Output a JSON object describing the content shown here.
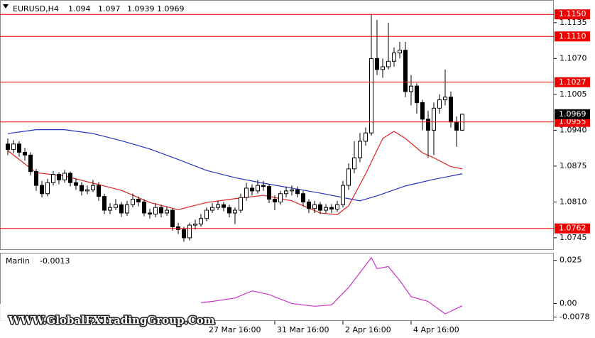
{
  "chart_data": [
    {
      "type": "candlestick",
      "title": "EURUSD,H4",
      "categories": [
        null,
        null,
        null,
        null,
        null,
        null,
        null,
        null,
        null,
        null,
        null,
        null,
        null,
        null,
        null,
        null,
        null,
        null,
        null,
        null,
        null,
        null,
        null,
        null,
        null,
        null,
        null,
        null,
        null,
        null,
        null,
        null,
        null,
        null,
        null,
        "27 Mar 16:00",
        null,
        null,
        null,
        null,
        null,
        null,
        null,
        null,
        null,
        null,
        null,
        "31 Mar 16:00",
        null,
        null,
        null,
        null,
        null,
        null,
        null,
        null,
        null,
        null,
        null,
        "2 Apr 16:00",
        null,
        null,
        null,
        null,
        null,
        null,
        null,
        null,
        null,
        null,
        null,
        "4 Apr 16:00",
        null,
        null,
        null,
        null,
        null,
        null,
        null,
        null,
        null
      ],
      "open": [
        1.0915,
        1.0905,
        1.0915,
        1.09,
        1.0895,
        1.0865,
        1.084,
        1.0825,
        1.0845,
        1.086,
        1.085,
        1.0862,
        1.0845,
        1.084,
        1.083,
        1.0832,
        1.084,
        1.082,
        1.0795,
        1.08,
        1.0805,
        1.079,
        1.0805,
        1.0815,
        1.081,
        1.079,
        1.0788,
        1.08,
        1.079,
        1.0795,
        1.0765,
        1.076,
        1.0745,
        1.0768,
        1.077,
        1.078,
        1.0795,
        1.08,
        1.0805,
        1.08,
        1.079,
        1.0795,
        1.0818,
        1.0835,
        1.083,
        1.084,
        1.0838,
        1.0815,
        1.081,
        1.0825,
        1.083,
        1.0832,
        1.0825,
        1.081,
        1.0798,
        1.0805,
        1.0795,
        1.08,
        1.0797,
        1.0805,
        1.084,
        1.087,
        1.089,
        1.092,
        1.0935,
        1.107,
        1.105,
        1.1055,
        1.1065,
        1.108,
        1.1085,
        1.101,
        1.102,
        1.099,
        1.096,
        1.094,
        1.098,
        1.0995,
        1.1,
        1.0955,
        1.094
      ],
      "high": [
        1.0925,
        1.0922,
        1.092,
        1.0908,
        1.09,
        1.087,
        1.0848,
        1.0852,
        1.0866,
        1.0864,
        1.0868,
        1.0865,
        1.0852,
        1.0846,
        1.084,
        1.085,
        1.0846,
        1.0825,
        1.0808,
        1.0815,
        1.081,
        1.0812,
        1.0825,
        1.082,
        1.0815,
        1.0798,
        1.0808,
        1.0805,
        1.0802,
        1.0798,
        1.0772,
        1.0765,
        1.0772,
        1.0778,
        1.0788,
        1.08,
        1.0808,
        1.0812,
        1.081,
        1.0805,
        1.08,
        1.0825,
        1.0845,
        1.0842,
        1.085,
        1.0848,
        1.0842,
        1.0822,
        1.083,
        1.0838,
        1.084,
        1.0838,
        1.083,
        1.0815,
        1.0812,
        1.081,
        1.0806,
        1.0806,
        1.0812,
        1.0848,
        1.088,
        1.092,
        1.0935,
        1.0945,
        1.115,
        1.114,
        1.107,
        1.1135,
        1.109,
        1.11,
        1.11,
        1.104,
        1.1025,
        1.0995,
        1.0975,
        1.099,
        1.1005,
        1.105,
        1.101,
        1.0965,
        1.097
      ],
      "low": [
        1.0895,
        1.0898,
        1.0892,
        1.0885,
        1.0858,
        1.083,
        1.0818,
        1.082,
        1.084,
        1.0842,
        1.0845,
        1.0838,
        1.0832,
        1.0822,
        1.0824,
        1.0828,
        1.0812,
        1.0788,
        1.0788,
        1.0795,
        1.0783,
        1.0785,
        1.08,
        1.0802,
        1.0784,
        1.078,
        1.0782,
        1.0782,
        1.0785,
        1.0758,
        1.0752,
        1.0738,
        1.074,
        1.076,
        1.0765,
        1.0775,
        1.079,
        1.0795,
        1.0793,
        1.0782,
        1.077,
        1.079,
        1.0812,
        1.0822,
        1.0825,
        1.083,
        1.0808,
        1.0795,
        1.0805,
        1.0818,
        1.0822,
        1.0818,
        1.0802,
        1.079,
        1.079,
        1.0788,
        1.079,
        1.079,
        1.0792,
        1.08,
        1.0832,
        1.0862,
        1.0882,
        1.0912,
        1.093,
        1.104,
        1.1035,
        1.105,
        1.1055,
        1.107,
        1.1,
        1.0985,
        1.097,
        1.094,
        1.089,
        1.0895,
        1.097,
        1.0985,
        1.0945,
        1.091,
        1.0939
      ],
      "close": [
        1.0905,
        1.0915,
        1.09,
        1.0895,
        1.0865,
        1.084,
        1.0825,
        1.0845,
        1.086,
        1.085,
        1.0862,
        1.0845,
        1.084,
        1.083,
        1.0832,
        1.084,
        1.082,
        1.0795,
        1.08,
        1.0805,
        1.079,
        1.0805,
        1.0815,
        1.081,
        1.079,
        1.0788,
        1.08,
        1.079,
        1.0795,
        1.0765,
        1.076,
        1.0745,
        1.0768,
        1.077,
        1.078,
        1.0795,
        1.08,
        1.0805,
        1.08,
        1.079,
        1.0795,
        1.0818,
        1.0835,
        1.083,
        1.084,
        1.0838,
        1.0815,
        1.081,
        1.0825,
        1.083,
        1.0832,
        1.0825,
        1.081,
        1.0798,
        1.0805,
        1.0795,
        1.08,
        1.0797,
        1.0805,
        1.084,
        1.087,
        1.089,
        1.092,
        1.0935,
        1.107,
        1.105,
        1.1055,
        1.1065,
        1.108,
        1.1085,
        1.101,
        1.102,
        1.099,
        1.096,
        1.094,
        1.098,
        1.0995,
        1.1,
        1.0955,
        1.094,
        1.0969
      ],
      "up_color": "#ffffff",
      "down_color": "#000000",
      "outline_color": "#000000",
      "lines": [
        {
          "color": "#2233bb",
          "x": [
            0,
            5,
            10,
            15,
            20,
            25,
            30,
            35,
            40,
            45,
            50,
            55,
            60,
            62,
            65,
            70,
            75,
            80
          ],
          "values": [
            1.0934,
            1.0941,
            1.0941,
            1.0934,
            1.0921,
            1.0906,
            1.0887,
            1.0867,
            1.0854,
            1.0844,
            1.0835,
            1.0826,
            1.0816,
            1.0812,
            1.0821,
            1.0839,
            1.0851,
            1.0861
          ]
        },
        {
          "color": "#dd2222",
          "x": [
            0,
            5,
            10,
            15,
            20,
            25,
            30,
            35,
            40,
            45,
            50,
            55,
            58,
            60,
            63,
            66,
            68,
            70,
            73,
            75,
            78,
            80
          ],
          "values": [
            1.0903,
            1.0863,
            1.0857,
            1.0844,
            1.0831,
            1.0809,
            1.0796,
            1.0809,
            1.0816,
            1.0822,
            1.0812,
            1.079,
            1.0787,
            1.0803,
            1.0861,
            1.0925,
            1.0938,
            1.0925,
            1.0899,
            1.089,
            1.0874,
            1.087
          ]
        }
      ],
      "levels": [
        {
          "value": 1.115,
          "label": "1.1150"
        },
        {
          "value": 1.111,
          "label": "1.1110"
        },
        {
          "value": 1.1027,
          "label": "1.1027"
        },
        {
          "value": 1.0955,
          "label": "1.0955"
        },
        {
          "value": 1.0762,
          "label": "1.0762"
        }
      ],
      "level_color": "#ee0000",
      "ylim": [
        1.0723,
        1.1176
      ],
      "yticks": [
        1.1135,
        {
          "value": 1.107,
          "label": "1.1070"
        },
        1.1005,
        {
          "value": 1.094,
          "label": "1.0940"
        },
        1.0875,
        {
          "value": 1.081,
          "label": "1.0810"
        },
        1.0745
      ],
      "grid": false,
      "watermark": "WWW.GlobalFXTradingGroup.Com"
    },
    {
      "type": "line",
      "title": "Marlin",
      "series": [
        {
          "color": "#cc33cc",
          "x": [
            34,
            36,
            40,
            43,
            46,
            50,
            54,
            57,
            60,
            64,
            65,
            67,
            69,
            71,
            74,
            77,
            80
          ],
          "values": [
            0.0005,
            0.0012,
            0.0032,
            0.0073,
            0.0052,
            0,
            -0.0016,
            -0.0008,
            0.0093,
            0.0266,
            0.0202,
            0.0214,
            0.0133,
            0.004,
            0.0012,
            -0.006,
            -0.0013
          ]
        }
      ],
      "ylim": [
        -0.0097,
        0.029
      ],
      "yticks": [
        0.025,
        {
          "value": 0,
          "label": "0.00"
        },
        -0.0078
      ]
    }
  ]
}
